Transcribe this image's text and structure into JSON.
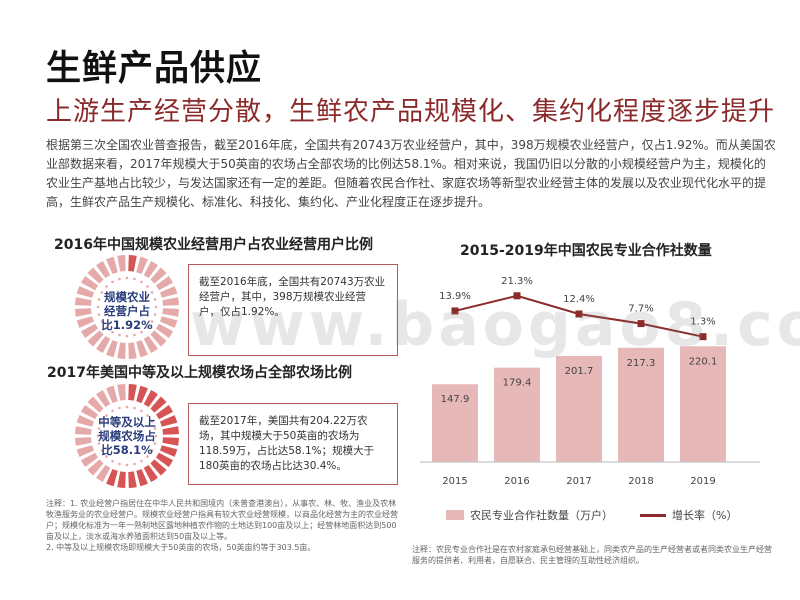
{
  "page": {
    "title": "生鲜产品供应",
    "subtitle": "上游生产经营分散，生鲜农产品规模化、集约化程度逐步提升",
    "intro": "根据第三次全国农业普查报告，截至2016年底，全国共有20743万农业经营户，其中，398万规模农业经营户，仅占1.92%。而从美国农业部数据来看，2017年规模大于50英亩的农场占全部农场的比例达58.1%。相对来说，我国仍旧以分散的小规模经营户为主，规模化的农业生产基地占比较少，与发达国家还有一定的差距。但随着农民合作社、家庭农场等新型农业经营主体的发展以及农业现代化水平的提高，生鲜农产品生产规模化、标准化、科技化、集约化、产业化程度正在逐步提升。",
    "watermark": "www.baogao8.com"
  },
  "left": {
    "china": {
      "title": "2016年中国规模农业经营用户占农业经营用户比例",
      "ring_label_line1": "规模农业",
      "ring_label_line2": "经营户占",
      "ring_label_line3": "比1.92%",
      "note": "截至2016年底，全国共有20743万农业经营户，其中，398万规模农业经营户，仅占1.92%。",
      "share": 0.0192
    },
    "us": {
      "title": "2017年美国中等及以上规模农场占全部农场比例",
      "ring_label_line1": "中等及以上",
      "ring_label_line2": "规模农场占",
      "ring_label_line3": "比58.1%",
      "note": "截至2017年，美国共有204.22万农场，其中规模大于50英亩的农场为118.59万，占比达58.1%；规模大于180英亩的农场占比达30.4%。",
      "share": 0.581
    },
    "footnote": "注释：1. 农业经营户指居住在中华人民共和国境内（未普查港澳台），从事农、林、牧、渔业及农林牧渔服务业的农业经营户。规模农业经营户指具有较大农业经营规模，以商品化经营为主的农业经营户；规模化标准为一年一熟制地区露地种植农作物的土地达到100亩及以上；经营林地面积达到500亩及以上，淡水或海水养殖面积达到50亩及以上等。\n2. 中等及以上规模农场即规模大于50英亩的农场，50英亩约等于303.5亩。",
    "colors": {
      "filled": "#d65454",
      "empty": "#e5a9a9",
      "dot": "#ffffff"
    }
  },
  "chart_data": {
    "type": "bar",
    "title": "2015-2019年中国农民专业合作社数量",
    "categories": [
      "2015",
      "2016",
      "2017",
      "2018",
      "2019"
    ],
    "series": [
      {
        "name": "农民专业合作社数量（万户）",
        "type": "bar",
        "values": [
          147.9,
          179.4,
          201.7,
          217.3,
          220.1
        ],
        "color": "#e6b8b8"
      },
      {
        "name": "增长率（%）",
        "type": "line",
        "values": [
          13.9,
          21.3,
          12.4,
          7.7,
          1.3
        ],
        "color": "#8b2b2b"
      }
    ],
    "value_labels": [
      "147.9",
      "179.4",
      "201.7",
      "217.3",
      "220.1"
    ],
    "rate_labels": [
      "13.9%",
      "21.3%",
      "12.4%",
      "7.7%",
      "1.3%"
    ],
    "ylim_bar": [
      0,
      350
    ],
    "ylim_line": [
      -60,
      30
    ],
    "grid": false,
    "legend_position": "bottom",
    "footnote": "注释：农民专业合作社是在农村家庭承包经营基础上，同类农产品的生产经营者或者同类农业生产经营服务的提供者、利用者，自愿联合、民主管理的互助性经济组织。"
  }
}
